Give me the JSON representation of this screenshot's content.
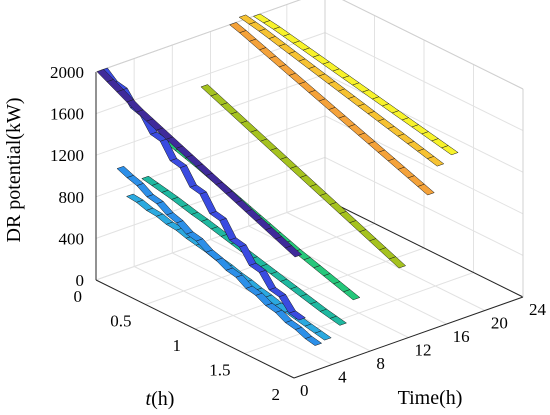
{
  "chart_data": {
    "type": "ribbon3d",
    "zlabel": "DR potential(kW)",
    "xlabel": "Time(h)",
    "ylabel_var": "t",
    "ylabel_unit": "(h)",
    "xticks": [
      0,
      4,
      8,
      12,
      16,
      20,
      24
    ],
    "yticks": [
      0,
      0.5,
      1,
      1.5,
      2
    ],
    "zticks": [
      0,
      400,
      800,
      1200,
      1600,
      2000
    ],
    "xlim": [
      0,
      24
    ],
    "ylim": [
      0,
      2
    ],
    "zlim": [
      0,
      2000
    ],
    "grid": true,
    "series": [
      {
        "color": "#3F2A9A",
        "x0": 0.1,
        "points": [
          [
            0,
            2000
          ],
          [
            0.1,
            1950
          ],
          [
            0.2,
            1900
          ],
          [
            0.3,
            1850
          ],
          [
            0.4,
            1800
          ],
          [
            0.5,
            1760
          ],
          [
            0.6,
            1720
          ],
          [
            0.7,
            1680
          ],
          [
            0.8,
            1640
          ],
          [
            0.9,
            1600
          ],
          [
            1.0,
            1560
          ],
          [
            1.1,
            1520
          ],
          [
            1.2,
            1480
          ],
          [
            1.3,
            1440
          ],
          [
            1.4,
            1400
          ],
          [
            1.5,
            1360
          ],
          [
            1.6,
            1320
          ],
          [
            1.7,
            1280
          ],
          [
            1.8,
            1240
          ],
          [
            1.9,
            1200
          ],
          [
            2.0,
            1160
          ]
        ]
      },
      {
        "color": "#3A4BE0",
        "x0": 0.5,
        "points": [
          [
            0,
            2000
          ],
          [
            0.1,
            1920
          ],
          [
            0.2,
            1900
          ],
          [
            0.3,
            1780
          ],
          [
            0.4,
            1750
          ],
          [
            0.5,
            1620
          ],
          [
            0.6,
            1600
          ],
          [
            0.7,
            1460
          ],
          [
            0.8,
            1440
          ],
          [
            0.9,
            1300
          ],
          [
            1.0,
            1280
          ],
          [
            1.1,
            1140
          ],
          [
            1.2,
            1120
          ],
          [
            1.3,
            980
          ],
          [
            1.4,
            960
          ],
          [
            1.5,
            830
          ],
          [
            1.6,
            810
          ],
          [
            1.7,
            690
          ],
          [
            1.8,
            670
          ],
          [
            1.9,
            560
          ],
          [
            2.0,
            540
          ]
        ]
      },
      {
        "color": "#2C8FE8",
        "x0": 2.2,
        "points": [
          [
            0,
            1000
          ],
          [
            0.1,
            960
          ],
          [
            0.2,
            930
          ],
          [
            0.3,
            870
          ],
          [
            0.4,
            850
          ],
          [
            0.5,
            790
          ],
          [
            0.6,
            760
          ],
          [
            0.7,
            700
          ],
          [
            0.8,
            680
          ],
          [
            0.9,
            620
          ],
          [
            1.0,
            590
          ],
          [
            1.1,
            540
          ],
          [
            1.2,
            520
          ],
          [
            1.3,
            460
          ],
          [
            1.4,
            440
          ],
          [
            1.5,
            390
          ],
          [
            1.6,
            370
          ],
          [
            1.7,
            320
          ],
          [
            1.8,
            300
          ],
          [
            1.9,
            260
          ],
          [
            2.0,
            240
          ]
        ]
      },
      {
        "color": "#2BA9DF",
        "x0": 3.2,
        "points": [
          [
            0,
            700
          ],
          [
            0.1,
            690
          ],
          [
            0.2,
            660
          ],
          [
            0.3,
            650
          ],
          [
            0.4,
            620
          ],
          [
            0.5,
            610
          ],
          [
            0.6,
            580
          ],
          [
            0.7,
            560
          ],
          [
            0.8,
            540
          ],
          [
            0.9,
            510
          ],
          [
            1.0,
            490
          ],
          [
            1.1,
            460
          ],
          [
            1.2,
            440
          ],
          [
            1.3,
            410
          ],
          [
            1.4,
            390
          ],
          [
            1.5,
            360
          ],
          [
            1.6,
            340
          ],
          [
            1.7,
            320
          ],
          [
            1.8,
            300
          ],
          [
            1.9,
            280
          ],
          [
            2.0,
            260
          ]
        ]
      },
      {
        "color": "#1FB8A0",
        "x0": 4.8,
        "points": [
          [
            0,
            820
          ],
          [
            0.1,
            800
          ],
          [
            0.2,
            780
          ],
          [
            0.3,
            760
          ],
          [
            0.4,
            735
          ],
          [
            0.5,
            710
          ],
          [
            0.6,
            690
          ],
          [
            0.7,
            665
          ],
          [
            0.8,
            640
          ],
          [
            0.9,
            615
          ],
          [
            1.0,
            590
          ],
          [
            1.1,
            565
          ],
          [
            1.2,
            540
          ],
          [
            1.3,
            515
          ],
          [
            1.4,
            490
          ],
          [
            1.5,
            465
          ],
          [
            1.6,
            440
          ],
          [
            1.7,
            415
          ],
          [
            1.8,
            390
          ],
          [
            1.9,
            370
          ],
          [
            2.0,
            350
          ]
        ]
      },
      {
        "color": "#25C77A",
        "x0": 6.2,
        "points": [
          [
            0,
            1200
          ],
          [
            0.1,
            1170
          ],
          [
            0.2,
            1140
          ],
          [
            0.3,
            1110
          ],
          [
            0.4,
            1080
          ],
          [
            0.5,
            1045
          ],
          [
            0.6,
            1010
          ],
          [
            0.7,
            975
          ],
          [
            0.8,
            940
          ],
          [
            0.9,
            905
          ],
          [
            1.0,
            870
          ],
          [
            1.1,
            835
          ],
          [
            1.2,
            800
          ],
          [
            1.3,
            765
          ],
          [
            1.4,
            730
          ],
          [
            1.5,
            700
          ],
          [
            1.6,
            670
          ],
          [
            1.7,
            640
          ],
          [
            1.8,
            610
          ],
          [
            1.9,
            580
          ],
          [
            2.0,
            550
          ]
        ]
      },
      {
        "color": "#A5C21F",
        "x0": 11.0,
        "points": [
          [
            0,
            1500
          ],
          [
            0.1,
            1460
          ],
          [
            0.2,
            1420
          ],
          [
            0.3,
            1380
          ],
          [
            0.4,
            1340
          ],
          [
            0.5,
            1300
          ],
          [
            0.6,
            1260
          ],
          [
            0.7,
            1220
          ],
          [
            0.8,
            1180
          ],
          [
            0.9,
            1140
          ],
          [
            1.0,
            1100
          ],
          [
            1.1,
            1060
          ],
          [
            1.2,
            1020
          ],
          [
            1.3,
            980
          ],
          [
            1.4,
            940
          ],
          [
            1.5,
            900
          ],
          [
            1.6,
            860
          ],
          [
            1.7,
            820
          ],
          [
            1.8,
            780
          ],
          [
            1.9,
            740
          ],
          [
            2.0,
            700
          ]
        ]
      },
      {
        "color": "#F4A23A",
        "x0": 14.0,
        "points": [
          [
            0,
            2000
          ],
          [
            0.1,
            1970
          ],
          [
            0.2,
            1935
          ],
          [
            0.3,
            1900
          ],
          [
            0.4,
            1865
          ],
          [
            0.5,
            1830
          ],
          [
            0.6,
            1795
          ],
          [
            0.7,
            1760
          ],
          [
            0.8,
            1725
          ],
          [
            0.9,
            1690
          ],
          [
            1.0,
            1655
          ],
          [
            1.1,
            1620
          ],
          [
            1.2,
            1585
          ],
          [
            1.3,
            1550
          ],
          [
            1.4,
            1515
          ],
          [
            1.5,
            1480
          ],
          [
            1.6,
            1445
          ],
          [
            1.7,
            1410
          ],
          [
            1.8,
            1375
          ],
          [
            1.9,
            1340
          ],
          [
            2.0,
            1305
          ]
        ]
      },
      {
        "color": "#F6C232",
        "x0": 15.0,
        "points": [
          [
            0,
            2040
          ],
          [
            0.1,
            2020
          ],
          [
            0.2,
            2000
          ],
          [
            0.3,
            1975
          ],
          [
            0.4,
            1950
          ],
          [
            0.5,
            1925
          ],
          [
            0.6,
            1900
          ],
          [
            0.7,
            1875
          ],
          [
            0.8,
            1850
          ],
          [
            0.9,
            1825
          ],
          [
            1.0,
            1800
          ],
          [
            1.1,
            1775
          ],
          [
            1.2,
            1750
          ],
          [
            1.3,
            1725
          ],
          [
            1.4,
            1700
          ],
          [
            1.5,
            1675
          ],
          [
            1.6,
            1650
          ],
          [
            1.7,
            1625
          ],
          [
            1.8,
            1600
          ],
          [
            1.9,
            1575
          ],
          [
            2.0,
            1550
          ]
        ]
      },
      {
        "color": "#F7F22A",
        "x0": 16.5,
        "points": [
          [
            0,
            2000
          ],
          [
            0.1,
            1985
          ],
          [
            0.2,
            1970
          ],
          [
            0.3,
            1950
          ],
          [
            0.4,
            1930
          ],
          [
            0.5,
            1910
          ],
          [
            0.6,
            1890
          ],
          [
            0.7,
            1870
          ],
          [
            0.8,
            1850
          ],
          [
            0.9,
            1830
          ],
          [
            1.0,
            1810
          ],
          [
            1.1,
            1790
          ],
          [
            1.2,
            1770
          ],
          [
            1.3,
            1750
          ],
          [
            1.4,
            1730
          ],
          [
            1.5,
            1710
          ],
          [
            1.6,
            1690
          ],
          [
            1.7,
            1670
          ],
          [
            1.8,
            1650
          ],
          [
            1.9,
            1630
          ],
          [
            2.0,
            1610
          ]
        ]
      }
    ]
  }
}
